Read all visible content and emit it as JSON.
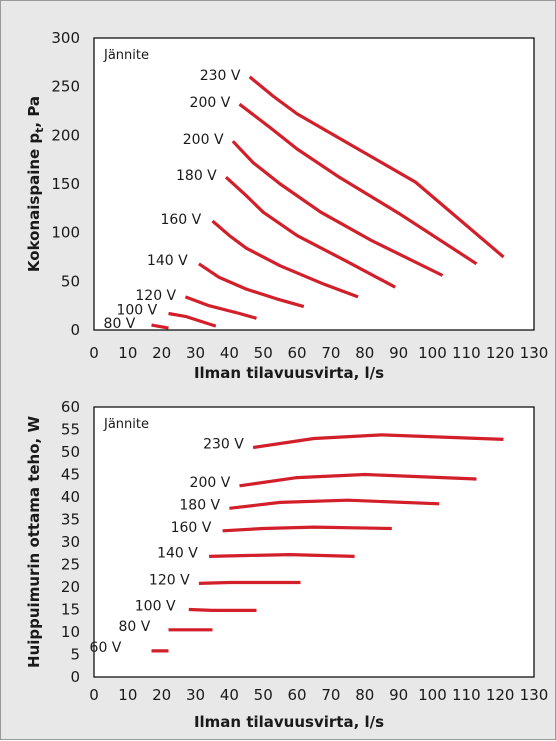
{
  "colors": {
    "series": "#d21f2a",
    "panel": "#ffffff",
    "background": "#e8e8e8",
    "frame": "#000000"
  },
  "chart_data": [
    {
      "type": "line",
      "annotation": "Jännite",
      "xlabel": "Ilman tilavuusvirta, l/s",
      "ylabel": "Kokonaispaine pt, Pa",
      "ylabel_main": "Kokonaispaine p",
      "ylabel_sub": "t",
      "ylabel_tail": ", Pa",
      "xlim": [
        0,
        130
      ],
      "ylim": [
        0,
        300
      ],
      "x_ticks": [
        "0",
        "10",
        "20",
        "30",
        "40",
        "50",
        "60",
        "70",
        "80",
        "90",
        "100",
        "110",
        "120",
        "130"
      ],
      "y_ticks": [
        "0",
        "50",
        "100",
        "150",
        "200",
        "250",
        "300"
      ],
      "grid": false,
      "series": [
        {
          "name": "80 V",
          "x": [
            17,
            22
          ],
          "y": [
            5,
            2
          ]
        },
        {
          "name": "100 V",
          "x": [
            22,
            27,
            36
          ],
          "y": [
            17,
            14,
            4
          ]
        },
        {
          "name": "120 V",
          "x": [
            27,
            34,
            43,
            48
          ],
          "y": [
            34,
            25,
            17,
            12
          ]
        },
        {
          "name": "140 V",
          "x": [
            31,
            37,
            45,
            54,
            62
          ],
          "y": [
            68,
            54,
            42,
            32,
            24
          ]
        },
        {
          "name": "160 V",
          "x": [
            35,
            40,
            45,
            55,
            68,
            78
          ],
          "y": [
            112,
            97,
            84,
            66,
            47,
            34
          ]
        },
        {
          "name": "180 V",
          "x": [
            39,
            45,
            50,
            60,
            75,
            89
          ],
          "y": [
            157,
            138,
            121,
            97,
            70,
            44
          ]
        },
        {
          "name": "200 V",
          "x": [
            41,
            47,
            55,
            67,
            82,
            103
          ],
          "y": [
            194,
            172,
            150,
            121,
            92,
            56
          ]
        },
        {
          "name": "200 V",
          "x": [
            43,
            52,
            60,
            72,
            90,
            113
          ],
          "y": [
            232,
            208,
            186,
            158,
            120,
            68
          ]
        },
        {
          "name": "230 V",
          "x": [
            46,
            53,
            60,
            75,
            95,
            121
          ],
          "y": [
            260,
            240,
            222,
            192,
            152,
            75
          ]
        }
      ]
    },
    {
      "type": "line",
      "annotation": "Jännite",
      "xlabel": "Ilman tilavuusvirta, l/s",
      "ylabel": "Huippuimurin ottama teho, W",
      "xlim": [
        0,
        130
      ],
      "ylim": [
        0,
        60
      ],
      "x_ticks": [
        "0",
        "10",
        "20",
        "30",
        "40",
        "50",
        "60",
        "70",
        "80",
        "90",
        "100",
        "110",
        "120",
        "130"
      ],
      "y_ticks": [
        "0",
        "5",
        "10",
        "15",
        "20",
        "25",
        "30",
        "35",
        "40",
        "45",
        "50",
        "55",
        "60"
      ],
      "grid": false,
      "series": [
        {
          "name": "60 V",
          "x": [
            17,
            22
          ],
          "y": [
            5.8,
            5.8
          ]
        },
        {
          "name": "80 V",
          "x": [
            22,
            35
          ],
          "y": [
            10.5,
            10.5
          ]
        },
        {
          "name": "100 V",
          "x": [
            28,
            35,
            48
          ],
          "y": [
            15.0,
            14.8,
            14.8
          ]
        },
        {
          "name": "120 V",
          "x": [
            31,
            40,
            50,
            61
          ],
          "y": [
            20.8,
            21.0,
            21.0,
            21.0
          ]
        },
        {
          "name": "140 V",
          "x": [
            34,
            45,
            58,
            77
          ],
          "y": [
            26.8,
            27.0,
            27.2,
            26.8
          ]
        },
        {
          "name": "160 V",
          "x": [
            38,
            50,
            65,
            88
          ],
          "y": [
            32.5,
            33.0,
            33.3,
            33.0
          ]
        },
        {
          "name": "180 V",
          "x": [
            40,
            55,
            75,
            102
          ],
          "y": [
            37.5,
            38.8,
            39.3,
            38.5
          ]
        },
        {
          "name": "200 V",
          "x": [
            43,
            60,
            80,
            113
          ],
          "y": [
            42.5,
            44.3,
            45.0,
            44.0
          ]
        },
        {
          "name": "230 V",
          "x": [
            47,
            65,
            85,
            121
          ],
          "y": [
            51.0,
            53.0,
            53.8,
            52.8
          ]
        }
      ]
    }
  ]
}
